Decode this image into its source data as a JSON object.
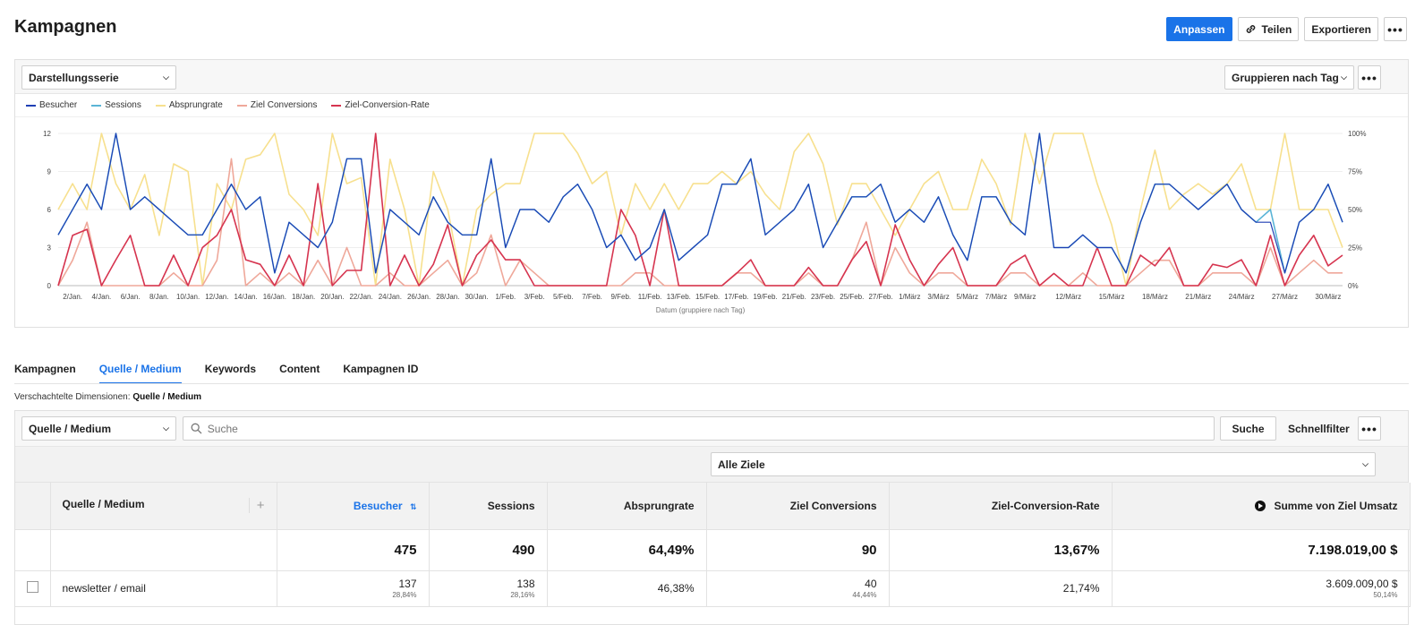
{
  "header": {
    "title": "Kampagnen",
    "actions": {
      "customize": "Anpassen",
      "share": "Teilen",
      "export": "Exportieren"
    }
  },
  "chart_panel": {
    "series_select": "Darstellungsserie",
    "group_select": "Gruppieren nach Tag",
    "legend": [
      {
        "label": "Besucher",
        "color": "#1f3fb4"
      },
      {
        "label": "Sessions",
        "color": "#5ab4d6"
      },
      {
        "label": "Absprungrate",
        "color": "#f7e08e"
      },
      {
        "label": "Ziel Conversions",
        "color": "#efa89a"
      },
      {
        "label": "Ziel-Conversion-Rate",
        "color": "#d6344f"
      }
    ]
  },
  "chart_data": {
    "type": "line",
    "xlabel": "Datum (gruppiere nach Tag)",
    "ylim_left": [
      0,
      12
    ],
    "ylim_right": [
      0,
      100
    ],
    "y_ticks_left": [
      "0",
      "3",
      "6",
      "9",
      "12"
    ],
    "y_ticks_right": [
      "0%",
      "25%",
      "50%",
      "75%",
      "100%"
    ],
    "x_tick_labels": [
      "2/Jan.",
      "4/Jan.",
      "6/Jan.",
      "8/Jan.",
      "10/Jan.",
      "12/Jan.",
      "14/Jan.",
      "16/Jan.",
      "18/Jan.",
      "20/Jan.",
      "22/Jan.",
      "24/Jan.",
      "26/Jan.",
      "28/Jan.",
      "30/Jan.",
      "1/Feb.",
      "3/Feb.",
      "5/Feb.",
      "7/Feb.",
      "9/Feb.",
      "11/Feb.",
      "13/Feb.",
      "15/Feb.",
      "17/Feb.",
      "19/Feb.",
      "21/Feb.",
      "23/Feb.",
      "25/Feb.",
      "27/Feb.",
      "1/März",
      "3/März",
      "5/März",
      "7/März",
      "9/März",
      "12/März",
      "15/März",
      "18/März",
      "21/März",
      "24/März",
      "27/März",
      "30/März"
    ],
    "x_tick_index": [
      1,
      3,
      5,
      7,
      9,
      11,
      13,
      15,
      17,
      19,
      21,
      23,
      25,
      27,
      29,
      31,
      33,
      35,
      37,
      39,
      41,
      43,
      45,
      47,
      49,
      51,
      53,
      55,
      57,
      59,
      61,
      63,
      65,
      67,
      70,
      73,
      76,
      79,
      82,
      85,
      88
    ],
    "series": [
      {
        "name": "Sessions",
        "axis": "left",
        "values": [
          4,
          6,
          8,
          6,
          12,
          6,
          7,
          6,
          5,
          4,
          4,
          6,
          8,
          6,
          7,
          1,
          5,
          4,
          3,
          5,
          10,
          10,
          1,
          6,
          5,
          4,
          7,
          5,
          4,
          4,
          10,
          3,
          6,
          6,
          5,
          7,
          8,
          6,
          3,
          4,
          2,
          3,
          6,
          2,
          3,
          4,
          8,
          8,
          10,
          4,
          5,
          6,
          8,
          3,
          5,
          7,
          7,
          8,
          5,
          6,
          5,
          7,
          4,
          2,
          7,
          7,
          5,
          4,
          12,
          3,
          3,
          4,
          3,
          3,
          1,
          5,
          8,
          8,
          7,
          6,
          7,
          8,
          6,
          5,
          6,
          1,
          5,
          6,
          8,
          5
        ]
      },
      {
        "name": "Besucher",
        "axis": "left",
        "values": [
          4,
          6,
          8,
          6,
          12,
          6,
          7,
          6,
          5,
          4,
          4,
          6,
          8,
          6,
          7,
          1,
          5,
          4,
          3,
          5,
          10,
          10,
          1,
          6,
          5,
          4,
          7,
          5,
          4,
          4,
          10,
          3,
          6,
          6,
          5,
          7,
          8,
          6,
          3,
          4,
          2,
          3,
          6,
          2,
          3,
          4,
          8,
          8,
          10,
          4,
          5,
          6,
          8,
          3,
          5,
          7,
          7,
          8,
          5,
          6,
          5,
          7,
          4,
          2,
          7,
          7,
          5,
          4,
          12,
          3,
          3,
          4,
          3,
          3,
          1,
          5,
          8,
          8,
          7,
          6,
          7,
          8,
          6,
          5,
          5,
          1,
          5,
          6,
          8,
          5
        ]
      },
      {
        "name": "Absprungrate",
        "axis": "right",
        "values": [
          50,
          67,
          50,
          100,
          67,
          50,
          73,
          33,
          80,
          75,
          0,
          67,
          50,
          83,
          86,
          100,
          60,
          50,
          33,
          100,
          67,
          71,
          0,
          83,
          50,
          0,
          75,
          50,
          0,
          50,
          60,
          67,
          67,
          100,
          100,
          100,
          87,
          67,
          75,
          33,
          67,
          50,
          67,
          50,
          67,
          67,
          75,
          67,
          75,
          60,
          50,
          88,
          100,
          80,
          40,
          67,
          67,
          50,
          33,
          50,
          67,
          75,
          50,
          50,
          83,
          67,
          40,
          100,
          67,
          100,
          100,
          100,
          67,
          40,
          0,
          50,
          89,
          50,
          60,
          67,
          60,
          67,
          80,
          50,
          50,
          100,
          50,
          50,
          50,
          25
        ]
      },
      {
        "name": "Ziel Conversions",
        "axis": "left",
        "values": [
          0,
          2,
          5,
          0,
          0,
          0,
          0,
          0,
          1,
          0,
          0,
          2,
          10,
          0,
          1,
          0,
          1,
          0,
          2,
          0,
          3,
          0,
          0,
          1,
          0,
          0,
          1,
          2,
          0,
          1,
          4,
          0,
          2,
          1,
          0,
          0,
          0,
          0,
          0,
          0,
          1,
          1,
          0,
          0,
          0,
          0,
          0,
          1,
          1,
          0,
          0,
          0,
          1,
          0,
          0,
          2,
          5,
          0,
          3,
          1,
          0,
          1,
          1,
          0,
          0,
          0,
          1,
          1,
          0,
          0,
          0,
          1,
          0,
          0,
          0,
          1,
          2,
          2,
          0,
          0,
          1,
          1,
          1,
          0,
          3,
          0,
          1,
          2,
          1,
          1
        ]
      },
      {
        "name": "Ziel-Conversion-Rate",
        "axis": "right",
        "values": [
          0,
          33,
          37,
          0,
          17,
          33,
          0,
          0,
          20,
          0,
          25,
          33,
          50,
          17,
          14,
          0,
          20,
          0,
          67,
          0,
          10,
          10,
          100,
          0,
          20,
          0,
          14,
          40,
          0,
          20,
          30,
          17,
          17,
          0,
          0,
          0,
          0,
          0,
          0,
          50,
          33,
          0,
          50,
          0,
          0,
          0,
          0,
          8,
          17,
          0,
          0,
          0,
          12,
          0,
          0,
          17,
          29,
          0,
          40,
          17,
          0,
          14,
          25,
          0,
          0,
          0,
          14,
          20,
          0,
          8,
          0,
          0,
          25,
          0,
          0,
          20,
          13,
          25,
          0,
          0,
          14,
          12,
          17,
          0,
          33,
          0,
          20,
          33,
          13,
          20
        ]
      }
    ],
    "grid": true,
    "legend_position": "top-left"
  },
  "tabs": [
    "Kampagnen",
    "Quelle / Medium",
    "Keywords",
    "Content",
    "Kampagnen ID"
  ],
  "nested": {
    "prefix": "Verschachtelte Dimensionen:",
    "value": "Quelle / Medium"
  },
  "table_toolbar": {
    "dimension_select": "Quelle / Medium",
    "search_placeholder": "Suche",
    "search_button": "Suche",
    "quick_filter": "Schnellfilter",
    "goals_select": "Alle Ziele"
  },
  "table": {
    "headers": [
      "Quelle / Medium",
      "Besucher",
      "Sessions",
      "Absprungrate",
      "Ziel Conversions",
      "Ziel-Conversion-Rate",
      "Summe von Ziel Umsatz"
    ],
    "totals": {
      "besucher": "475",
      "sessions": "490",
      "absprungrate": "64,49%",
      "conversions": "90",
      "conv_rate": "13,67%",
      "umsatz": "7.198.019,00 $"
    },
    "rows": [
      {
        "source": "newsletter / email",
        "besucher": "137",
        "besucher_pct": "28,84%",
        "sessions": "138",
        "sessions_pct": "28,16%",
        "absprungrate": "46,38%",
        "conversions": "40",
        "conversions_pct": "44,44%",
        "conv_rate": "21,74%",
        "umsatz": "3.609.009,00 $",
        "umsatz_pct": "50,14%"
      }
    ]
  }
}
